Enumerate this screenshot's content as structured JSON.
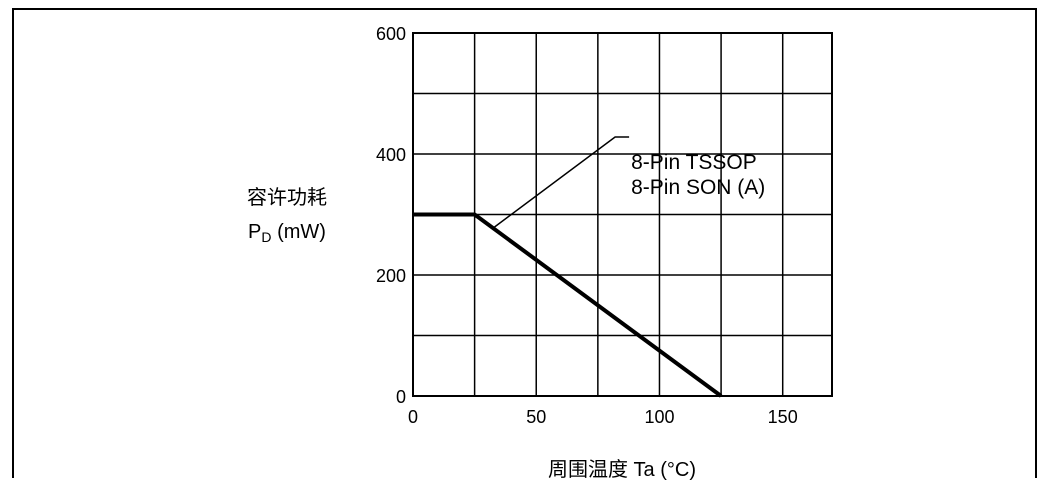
{
  "chart_data": {
    "type": "line",
    "ylabel_line1": "容许功耗",
    "ylabel_main": "P",
    "ylabel_sub": "D",
    "ylabel_unit": " (mW)",
    "xlabel": "周围温度  Ta (°C)",
    "xlim": [
      0,
      170
    ],
    "ylim": [
      0,
      600
    ],
    "xticks": [
      0,
      25,
      50,
      75,
      100,
      125,
      150,
      170
    ],
    "yticks": [
      0,
      100,
      200,
      300,
      400,
      500,
      600
    ],
    "xtick_labels": [
      "0",
      "50",
      "100",
      "150"
    ],
    "xtick_label_values": [
      0,
      50,
      100,
      150
    ],
    "ytick_labels": [
      "0",
      "200",
      "400",
      "600"
    ],
    "ytick_label_values": [
      0,
      200,
      400,
      600
    ],
    "grid": true,
    "series": [
      {
        "x": [
          0,
          25,
          125
        ],
        "y": [
          300,
          300,
          0
        ]
      }
    ],
    "annotation": {
      "lines": [
        "8-Pin TSSOP",
        "8-Pin SON (A)"
      ],
      "target": {
        "x": 32,
        "y": 276
      },
      "anchor": {
        "x": 82,
        "y": 428
      }
    }
  }
}
